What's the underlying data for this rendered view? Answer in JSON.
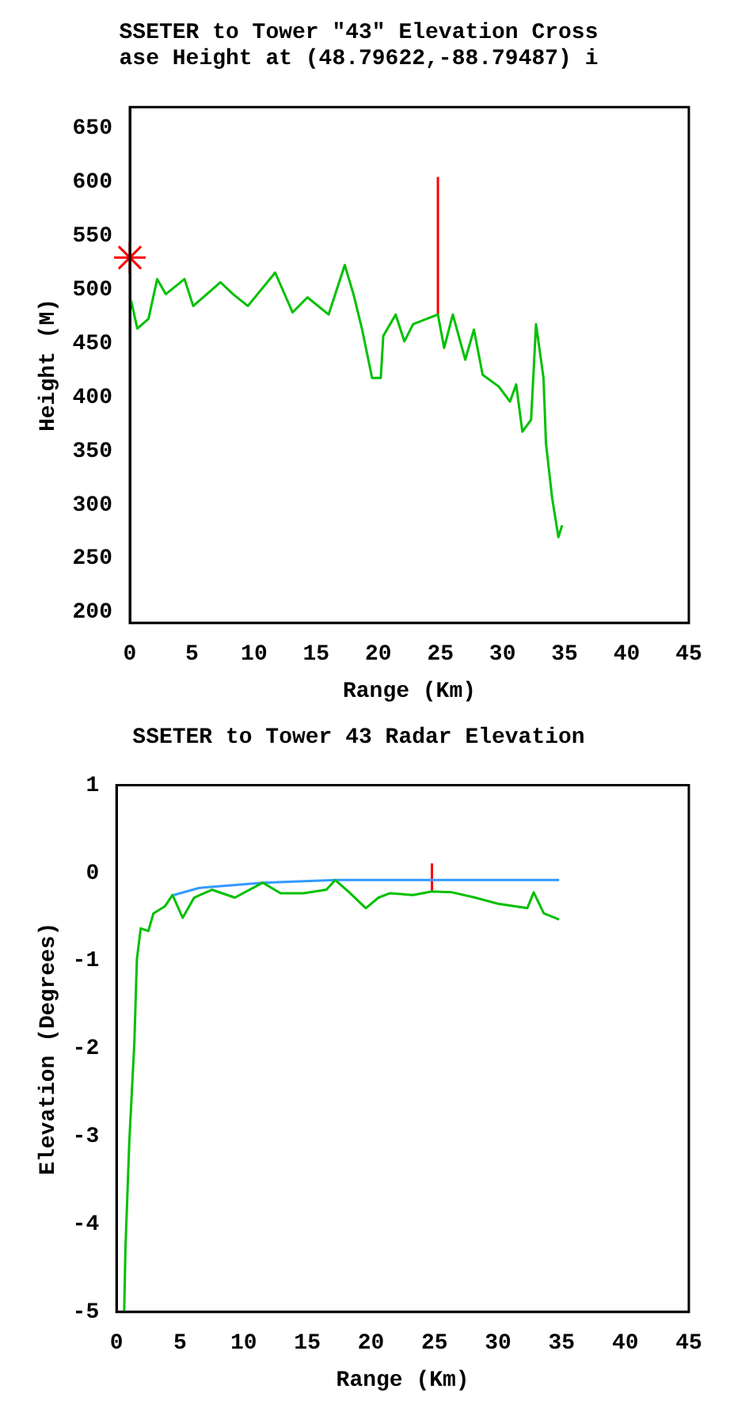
{
  "chart_data": [
    {
      "type": "line",
      "title": [
        "SSETER to Tower \"43\" Elevation Cross",
        "ase Height at (48.79622,-88.79487) i"
      ],
      "xlabel": "Range (Km)",
      "ylabel": "Height (M)",
      "xlim": [
        0,
        45
      ],
      "xticks": [
        0,
        5,
        10,
        15,
        20,
        25,
        30,
        35,
        40,
        45
      ],
      "ylim": [
        190,
        670
      ],
      "yticks": [
        200,
        250,
        300,
        350,
        400,
        450,
        500,
        550,
        600,
        650
      ],
      "grid": false,
      "legend": false,
      "marker": "none",
      "line_style": "solid",
      "series": [
        {
          "color": "#00c000",
          "x": [
            0.1,
            0.6,
            1.5,
            2.2,
            2.9,
            4.4,
            5.1,
            7.3,
            8.3,
            9.5,
            11.7,
            13.1,
            14.3,
            16.0,
            17.3,
            18.0,
            18.7,
            19.5,
            20.2,
            20.4,
            21.4,
            22.1,
            22.8,
            24.8,
            25.3,
            26.0,
            27.0,
            27.7,
            28.4,
            29.7,
            30.6,
            31.1,
            31.6,
            32.3,
            32.7,
            33.3,
            33.5,
            34.0,
            34.5,
            34.8
          ],
          "values": [
            490,
            464,
            473,
            510,
            496,
            510,
            485,
            507,
            496,
            485,
            516,
            479,
            493,
            477,
            523,
            496,
            463,
            418,
            418,
            457,
            477,
            452,
            468,
            477,
            446,
            477,
            435,
            463,
            421,
            410,
            396,
            412,
            368,
            379,
            468,
            418,
            357,
            306,
            270,
            281
          ]
        },
        {
          "type": "scatter",
          "marker": "cross",
          "color": "#ff0000",
          "x": [
            0
          ],
          "values": [
            530
          ]
        },
        {
          "color": "#ff0000",
          "x": [
            24.8,
            24.8
          ],
          "values": [
            477,
            605
          ]
        }
      ]
    },
    {
      "type": "line",
      "title": [
        "SSETER to Tower 43 Radar Elevation"
      ],
      "xlabel": "Range (Km)",
      "ylabel": "Elevation (Degrees)",
      "xlim": [
        0,
        45
      ],
      "xticks": [
        0,
        5,
        10,
        15,
        20,
        25,
        30,
        35,
        40,
        45
      ],
      "ylim": [
        -5,
        1
      ],
      "yticks": [
        -5,
        -4,
        -3,
        -2,
        -1,
        0,
        1
      ],
      "grid": false,
      "legend": false,
      "marker": "none",
      "line_style": "solid",
      "series": [
        {
          "color": "#00c000",
          "x": [
            0.6,
            0.7,
            1.0,
            1.4,
            1.6,
            1.9,
            2.5,
            2.9,
            3.8,
            4.4,
            5.2,
            6.1,
            7.5,
            9.3,
            11.5,
            12.9,
            14.7,
            16.5,
            17.2,
            18.3,
            19.6,
            20.6,
            21.5,
            23.3,
            24.8,
            26.4,
            28.2,
            30.0,
            32.3,
            32.8,
            33.6,
            34.8
          ],
          "values": [
            -5,
            -4.27,
            -3.07,
            -1.93,
            -0.98,
            -0.63,
            -0.66,
            -0.46,
            -0.38,
            -0.25,
            -0.51,
            -0.28,
            -0.19,
            -0.28,
            -0.11,
            -0.23,
            -0.23,
            -0.19,
            -0.08,
            -0.22,
            -0.4,
            -0.28,
            -0.23,
            -0.25,
            -0.21,
            -0.22,
            -0.28,
            -0.35,
            -0.4,
            -0.22,
            -0.46,
            -0.53
          ]
        },
        {
          "color": "#3399ff",
          "x": [
            4.5,
            6.5,
            11.5,
            17.2,
            34.8
          ],
          "values": [
            -0.25,
            -0.17,
            -0.11,
            -0.08,
            -0.08
          ]
        },
        {
          "color": "#ff0000",
          "x": [
            24.8,
            24.8
          ],
          "values": [
            -0.21,
            0.11
          ]
        }
      ]
    }
  ]
}
